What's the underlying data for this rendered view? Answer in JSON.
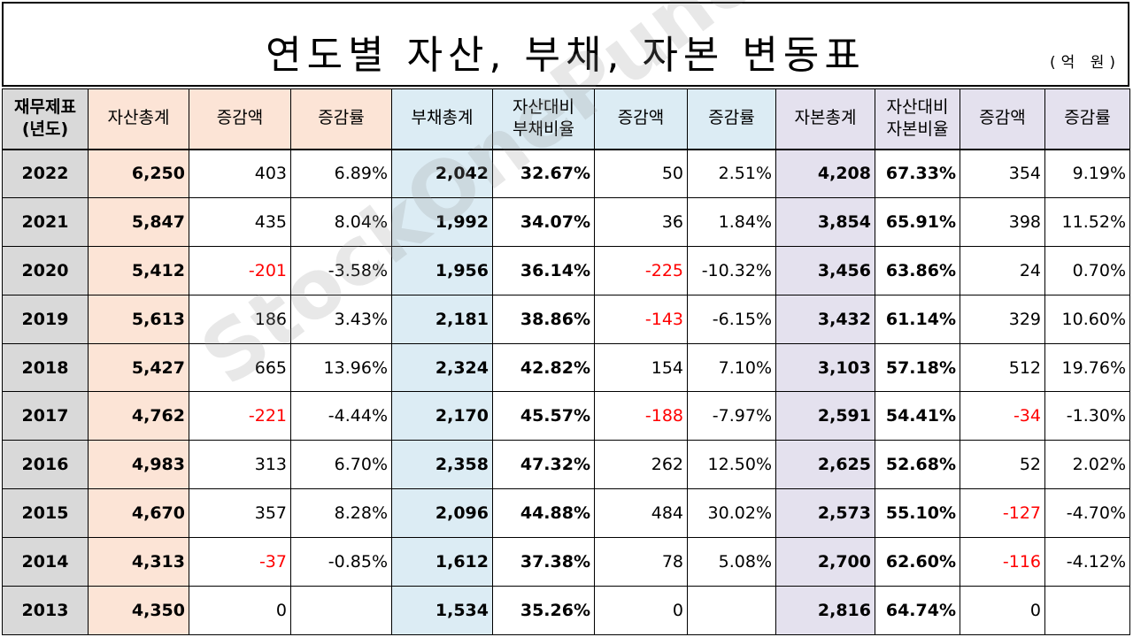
{
  "title": "연도별 자산, 부채, 자본 변동표",
  "unit": "(억 원)",
  "watermark": "StockOnePunch",
  "colors": {
    "asset_bg": "#fce4d6",
    "liability_bg": "#dcecf4",
    "equity_bg": "#e4e1ee",
    "year_bg": "#d9d9d9",
    "negative": "#ff0000"
  },
  "headers": {
    "year_line1": "재무제표",
    "year_line2": "(년도)",
    "total_assets": "자산총계",
    "asset_change": "증감액",
    "asset_rate": "증감률",
    "total_liabilities": "부채총계",
    "liab_ratio_line1": "자산대비",
    "liab_ratio_line2": "부채비율",
    "liab_change": "증감액",
    "liab_rate": "증감률",
    "total_equity": "자본총계",
    "eq_ratio_line1": "자산대비",
    "eq_ratio_line2": "자본비율",
    "eq_change": "증감액",
    "eq_rate": "증감률"
  },
  "chart_data": {
    "type": "table",
    "title": "연도별 자산, 부채, 자본 변동표",
    "unit": "(억 원)",
    "columns": [
      "재무제표(년도)",
      "자산총계",
      "증감액",
      "증감률",
      "부채총계",
      "자산대비 부채비율",
      "증감액",
      "증감률",
      "자본총계",
      "자산대비 자본비율",
      "증감액",
      "증감률"
    ],
    "rows": [
      [
        "2022",
        "6,250",
        "403",
        "6.89%",
        "2,042",
        "32.67%",
        "50",
        "2.51%",
        "4,208",
        "67.33%",
        "354",
        "9.19%"
      ],
      [
        "2021",
        "5,847",
        "435",
        "8.04%",
        "1,992",
        "34.07%",
        "36",
        "1.84%",
        "3,854",
        "65.91%",
        "398",
        "11.52%"
      ],
      [
        "2020",
        "5,412",
        "-201",
        "-3.58%",
        "1,956",
        "36.14%",
        "-225",
        "-10.32%",
        "3,456",
        "63.86%",
        "24",
        "0.70%"
      ],
      [
        "2019",
        "5,613",
        "186",
        "3.43%",
        "2,181",
        "38.86%",
        "-143",
        "-6.15%",
        "3,432",
        "61.14%",
        "329",
        "10.60%"
      ],
      [
        "2018",
        "5,427",
        "665",
        "13.96%",
        "2,324",
        "42.82%",
        "154",
        "7.10%",
        "3,103",
        "57.18%",
        "512",
        "19.76%"
      ],
      [
        "2017",
        "4,762",
        "-221",
        "-4.44%",
        "2,170",
        "45.57%",
        "-188",
        "-7.97%",
        "2,591",
        "54.41%",
        "-34",
        "-1.30%"
      ],
      [
        "2016",
        "4,983",
        "313",
        "6.70%",
        "2,358",
        "47.32%",
        "262",
        "12.50%",
        "2,625",
        "52.68%",
        "52",
        "2.02%"
      ],
      [
        "2015",
        "4,670",
        "357",
        "8.28%",
        "2,096",
        "44.88%",
        "484",
        "30.02%",
        "2,573",
        "55.10%",
        "-127",
        "-4.70%"
      ],
      [
        "2014",
        "4,313",
        "-37",
        "-0.85%",
        "1,612",
        "37.38%",
        "78",
        "5.08%",
        "2,700",
        "62.60%",
        "-116",
        "-4.12%"
      ],
      [
        "2013",
        "4,350",
        "0",
        "",
        "1,534",
        "35.26%",
        "0",
        "",
        "2,816",
        "64.74%",
        "0",
        ""
      ]
    ]
  }
}
